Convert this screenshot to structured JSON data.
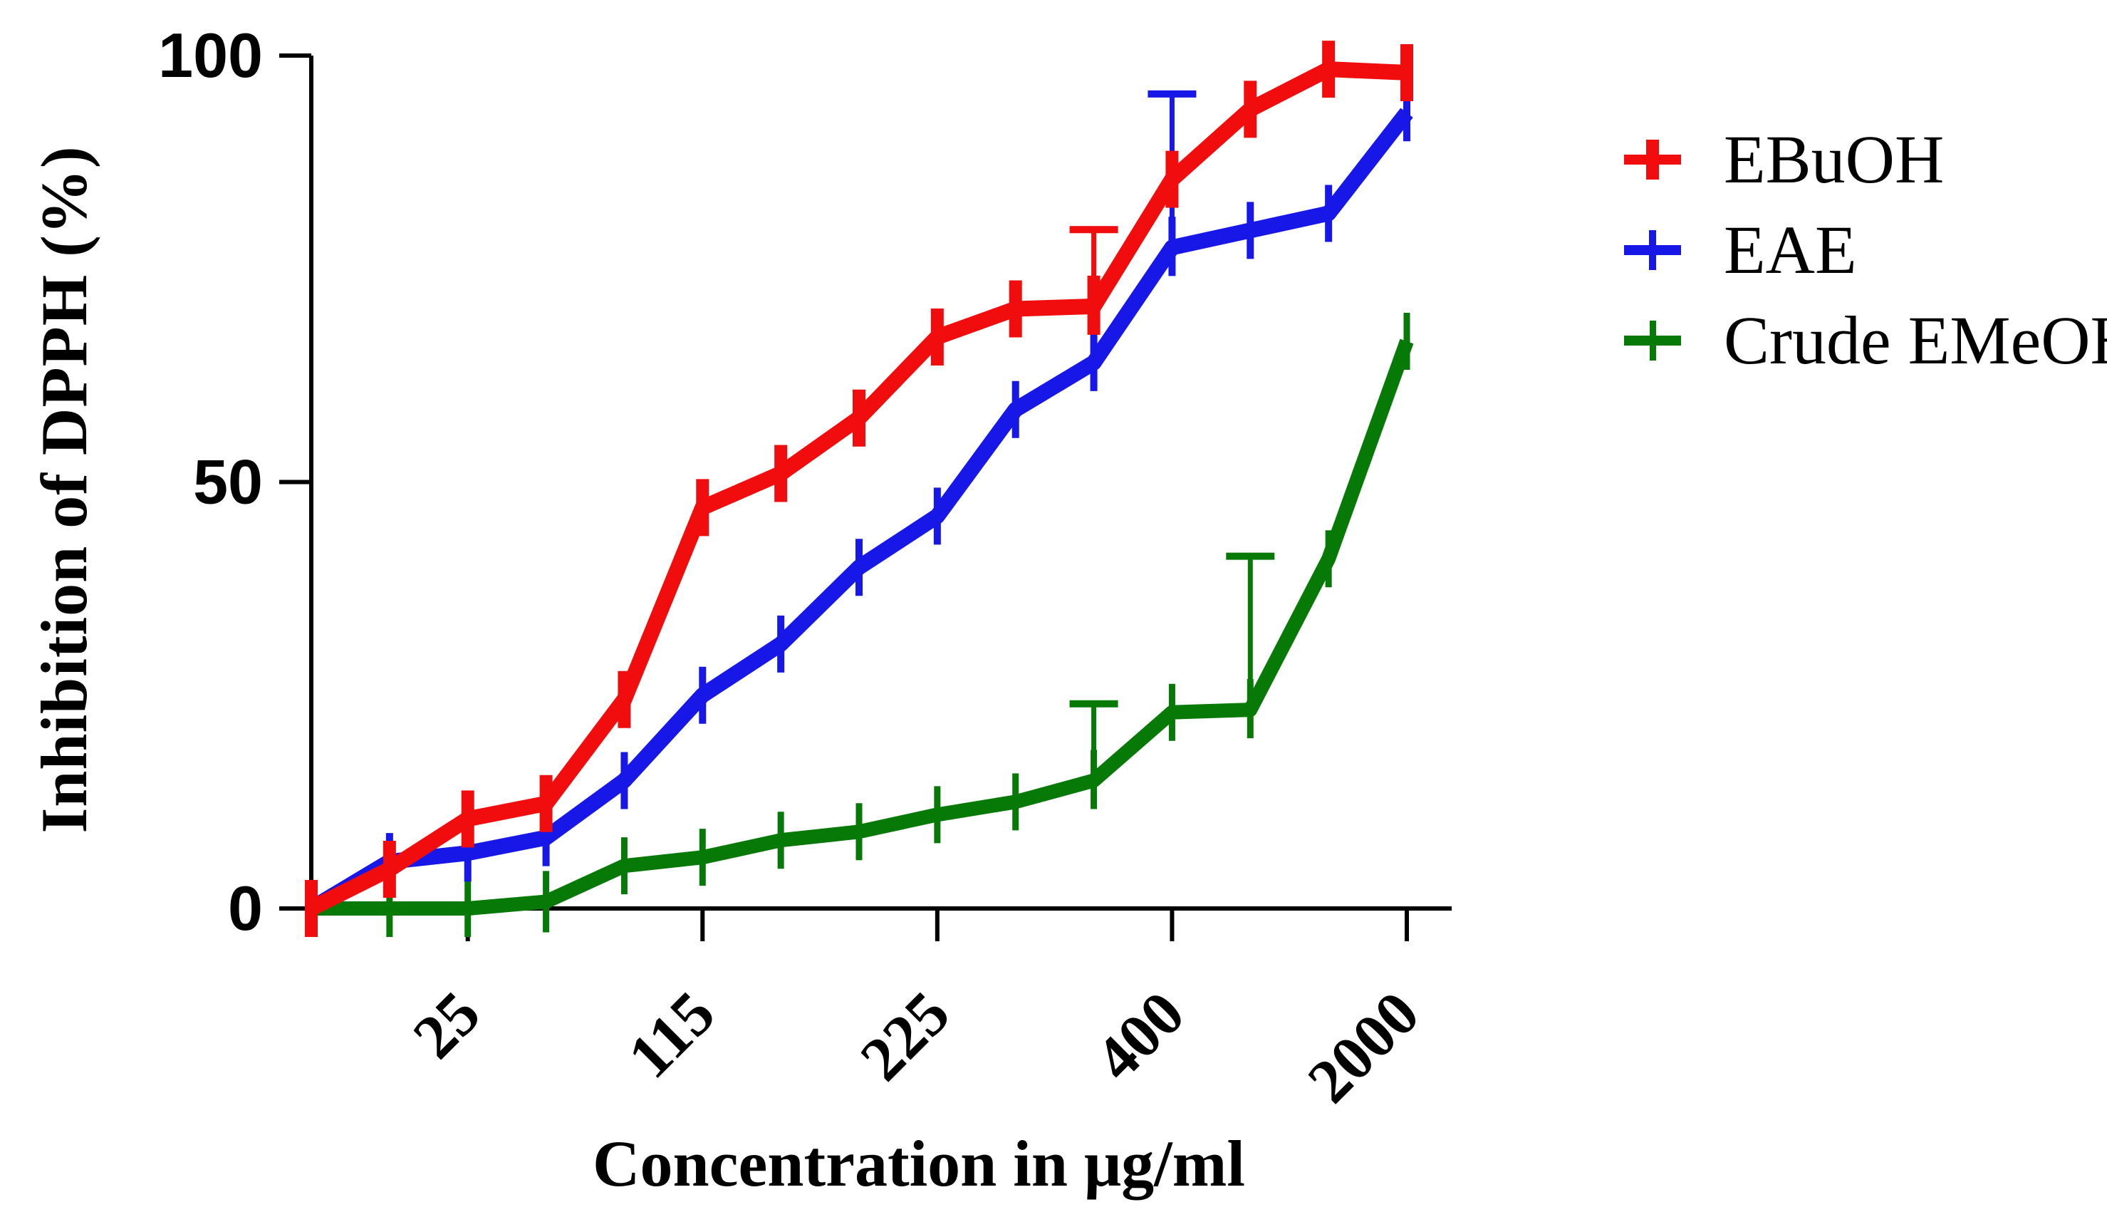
{
  "chart_data": {
    "type": "line",
    "title": "",
    "xlabel": "Concentration in μg/ml",
    "ylabel": "Inhibition of DPPH (%)",
    "ylim": [
      0,
      100
    ],
    "grid": "off",
    "legend_position": "right-outside",
    "y_tick_values": [
      0,
      50,
      100
    ],
    "y_tick_labels": [
      "0",
      "50",
      "100"
    ],
    "x_point_count": 15,
    "x_tick_indices": [
      2,
      5,
      8,
      11,
      14
    ],
    "x_tick_labels": [
      "25",
      "115",
      "225",
      "400",
      "2000"
    ],
    "axis_color": "#000000",
    "series": [
      {
        "name": "EBuOH",
        "color": "#F10D0D",
        "line_width": 22,
        "marker_tick_width": 18,
        "values": [
          0,
          4.6,
          10.5,
          12.3,
          24.5,
          47,
          51,
          57.5,
          67,
          70.3,
          70.6,
          85.5,
          93.7,
          98.4,
          98
        ],
        "err_plus": [
          2,
          2.5,
          2.5,
          1.5,
          1.5,
          1.5,
          1.2,
          1.5,
          1.8,
          1.8,
          9,
          2.3,
          2,
          1.5,
          1.8
        ],
        "err_minus": [
          2,
          2.5,
          2.5,
          1.5,
          1.5,
          1.5,
          1.2,
          1.5,
          1.8,
          1.8,
          2.5,
          2.3,
          2,
          1.5,
          2.5
        ]
      },
      {
        "name": "EAE",
        "color": "#1717E8",
        "line_width": 22,
        "marker_tick_width": 10,
        "values": [
          0,
          5.5,
          6.5,
          8.3,
          15,
          25,
          31,
          40,
          46,
          58.5,
          64,
          77.5,
          79.5,
          81.5,
          93.3
        ],
        "err_plus": [
          0,
          1.5,
          1.5,
          1.2,
          2,
          2,
          2.5,
          2.2,
          2,
          2,
          2,
          18,
          2,
          2.5,
          2.3
        ],
        "err_minus": [
          0,
          1.5,
          1.5,
          1.2,
          2,
          2,
          2.5,
          2.2,
          2,
          2,
          2,
          2,
          2,
          2.5,
          2.3
        ]
      },
      {
        "name": "Crude EMeOH",
        "color": "#077907",
        "line_width": 20,
        "marker_tick_width": 9,
        "values": [
          0,
          0,
          0,
          0.8,
          5,
          6,
          8,
          9,
          11,
          12.5,
          15,
          23,
          23.3,
          41,
          66.5
        ],
        "err_plus": [
          0,
          3,
          3.5,
          4,
          3,
          3.5,
          3,
          2.5,
          2.5,
          2.5,
          9,
          2,
          18,
          2.5,
          2.5
        ],
        "err_minus": [
          0,
          3,
          3.5,
          4,
          3,
          3.5,
          3,
          2.5,
          2.5,
          2.5,
          2.5,
          2,
          2,
          2.5,
          2
        ]
      }
    ]
  }
}
